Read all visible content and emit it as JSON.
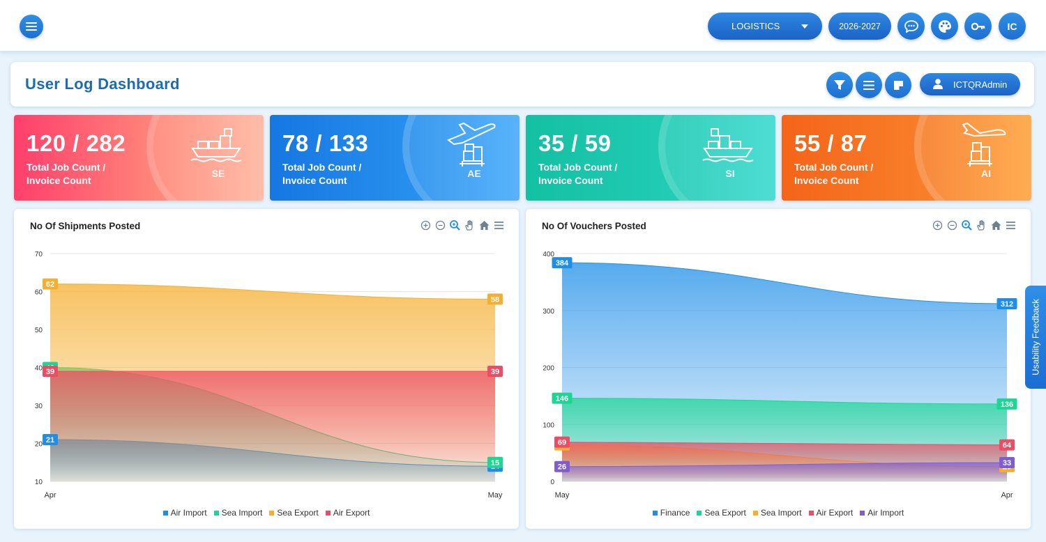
{
  "topbar": {
    "module_select": "LOGISTICS",
    "year_button": "2026-2027",
    "avatar_initials": "IC"
  },
  "header": {
    "title": "User Log Dashboard",
    "user_button": "ICTQRAdmin"
  },
  "stats": [
    {
      "value": "120 / 282",
      "label_line1": "Total Job Count /",
      "label_line2": "Invoice Count",
      "code": "SE",
      "icon": "ship-icon"
    },
    {
      "value": "78 / 133",
      "label_line1": "Total Job Count /",
      "label_line2": "Invoice Count",
      "code": "AE",
      "icon": "plane-departure-icon"
    },
    {
      "value": "35 / 59",
      "label_line1": "Total Job Count /",
      "label_line2": "Invoice Count",
      "code": "SI",
      "icon": "ship-icon"
    },
    {
      "value": "55 / 87",
      "label_line1": "Total Job Count /",
      "label_line2": "Invoice Count",
      "code": "AI",
      "icon": "plane-arrival-icon"
    }
  ],
  "colors": {
    "se": [
      "#ff3f6c",
      "#ffb8a4"
    ],
    "ae": [
      "#1a7ee6",
      "#4ab0fb"
    ],
    "si": [
      "#16c4a6",
      "#3adbd0"
    ],
    "ai": [
      "#f66a1c",
      "#ffa13e"
    ],
    "blue": "#1e8ee8",
    "green": "#1ed694",
    "orange": "#f5ae2e",
    "red": "#ec4d64",
    "purple": "#7e5dd4"
  },
  "feedback_tab": "Usability Feedback",
  "chart_data": [
    {
      "type": "area",
      "title": "No Of Shipments Posted",
      "categories": [
        "Apr",
        "May"
      ],
      "ylim": [
        10,
        70
      ],
      "yticks": [
        10,
        20,
        30,
        40,
        50,
        60,
        70
      ],
      "grid": true,
      "legend": "bottom",
      "series": [
        {
          "name": "Air Import",
          "values": [
            21,
            14
          ],
          "color": "#1e8ee8"
        },
        {
          "name": "Sea Import",
          "values": [
            40,
            15
          ],
          "color": "#1ed694"
        },
        {
          "name": "Sea Export",
          "values": [
            62,
            58
          ],
          "color": "#f5ae2e"
        },
        {
          "name": "Air Export",
          "values": [
            39,
            39
          ],
          "color": "#ec4d64"
        }
      ]
    },
    {
      "type": "area",
      "title": "No Of Vouchers Posted",
      "categories": [
        "May",
        "Apr"
      ],
      "ylim": [
        0,
        400
      ],
      "yticks": [
        0,
        100,
        200,
        300,
        400
      ],
      "grid": true,
      "legend": "bottom",
      "series": [
        {
          "name": "Finance",
          "values": [
            384,
            312
          ],
          "color": "#1e8ee8"
        },
        {
          "name": "Sea Export",
          "values": [
            146,
            136
          ],
          "color": "#1ed694"
        },
        {
          "name": "Sea Import",
          "values": [
            64,
            26
          ],
          "color": "#f5ae2e"
        },
        {
          "name": "Air Export",
          "values": [
            69,
            64
          ],
          "color": "#ec4d64"
        },
        {
          "name": "Air Import",
          "values": [
            26,
            33
          ],
          "color": "#7e5dd4"
        }
      ]
    }
  ]
}
